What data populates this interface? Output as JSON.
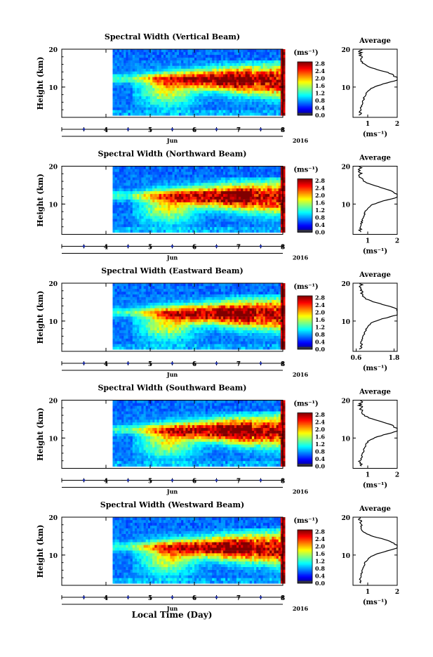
{
  "figure": {
    "xlabel": "Local Time (Day)",
    "month_label": "Jun",
    "year_label": "2016"
  },
  "chart_data": [
    {
      "type": "heatmap",
      "title": "Spectral Width (Vertical Beam)",
      "ylabel": "Height (km)",
      "xlim": [
        3.0,
        8.0
      ],
      "ylim": [
        2,
        20
      ],
      "xticks": [
        4,
        5,
        6,
        7,
        8
      ],
      "yticks": [
        10,
        20
      ],
      "colorbar": {
        "label": "(ms⁻¹)",
        "range": [
          0.0,
          2.8
        ],
        "ticks": [
          "2.8",
          "2.4",
          "2.0",
          "1.6",
          "1.2",
          "0.8",
          "0.4",
          "0.0"
        ]
      },
      "average": {
        "title": "Average",
        "xlabel": "(ms⁻¹)",
        "xlim": [
          0.5,
          2.0
        ],
        "xticks": [
          1,
          2
        ],
        "xtick_labels": [
          "1",
          "2"
        ],
        "yticks": [
          10,
          20
        ],
        "ylim": [
          2,
          20
        ]
      }
    },
    {
      "type": "heatmap",
      "title": "Spectral Width (Northward Beam)",
      "ylabel": "Height (km)",
      "xlim": [
        3.0,
        8.0
      ],
      "ylim": [
        2,
        20
      ],
      "xticks": [
        4,
        5,
        6,
        7,
        8
      ],
      "yticks": [
        10,
        20
      ],
      "colorbar": {
        "label": "(ms⁻¹)",
        "range": [
          0.0,
          2.8
        ],
        "ticks": [
          "2.8",
          "2.4",
          "2.0",
          "1.6",
          "1.2",
          "0.8",
          "0.4",
          "0.0"
        ]
      },
      "average": {
        "title": "Average",
        "xlabel": "(ms⁻¹)",
        "xlim": [
          0.5,
          2.0
        ],
        "xticks": [
          1,
          2
        ],
        "xtick_labels": [
          "1",
          "2"
        ],
        "yticks": [
          10,
          20
        ],
        "ylim": [
          2,
          20
        ]
      }
    },
    {
      "type": "heatmap",
      "title": "Spectral Width (Eastward Beam)",
      "ylabel": "Height (km)",
      "xlim": [
        3.0,
        8.0
      ],
      "ylim": [
        2,
        20
      ],
      "xticks": [
        4,
        5,
        6,
        7,
        8
      ],
      "yticks": [
        10,
        20
      ],
      "colorbar": {
        "label": "(ms⁻¹)",
        "range": [
          0.0,
          2.8
        ],
        "ticks": [
          "2.8",
          "2.4",
          "2.0",
          "1.6",
          "1.2",
          "0.8",
          "0.4",
          "0.0"
        ]
      },
      "average": {
        "title": "Average",
        "xlabel": "(ms⁻¹)",
        "xlim": [
          0.5,
          1.9
        ],
        "xticks": [
          0.6,
          1.8
        ],
        "xtick_labels": [
          "0.6",
          "1.8"
        ],
        "yticks": [
          10,
          20
        ],
        "ylim": [
          2,
          20
        ]
      }
    },
    {
      "type": "heatmap",
      "title": "Spectral Width (Southward Beam)",
      "ylabel": "Height (km)",
      "xlim": [
        3.0,
        8.0
      ],
      "ylim": [
        2,
        20
      ],
      "xticks": [
        4,
        5,
        6,
        7,
        8
      ],
      "yticks": [
        10,
        20
      ],
      "colorbar": {
        "label": "(ms⁻¹)",
        "range": [
          0.0,
          2.8
        ],
        "ticks": [
          "2.8",
          "2.4",
          "2.0",
          "1.6",
          "1.2",
          "0.8",
          "0.4",
          "0.0"
        ]
      },
      "average": {
        "title": "Average",
        "xlabel": "(ms⁻¹)",
        "xlim": [
          0.5,
          2.0
        ],
        "xticks": [
          1,
          2
        ],
        "xtick_labels": [
          "1",
          "2"
        ],
        "yticks": [
          10,
          20
        ],
        "ylim": [
          2,
          20
        ]
      }
    },
    {
      "type": "heatmap",
      "title": "Spectral Width (Westward Beam)",
      "ylabel": "Height (km)",
      "xlim": [
        3.0,
        8.0
      ],
      "ylim": [
        2,
        20
      ],
      "xticks": [
        4,
        5,
        6,
        7,
        8
      ],
      "yticks": [
        10,
        20
      ],
      "colorbar": {
        "label": "(ms⁻¹)",
        "range": [
          0.0,
          2.8
        ],
        "ticks": [
          "2.8",
          "2.4",
          "2.0",
          "1.6",
          "1.2",
          "0.8",
          "0.4",
          "0.0"
        ]
      },
      "average": {
        "title": "Average",
        "xlabel": "(ms⁻¹)",
        "xlim": [
          0.5,
          2.0
        ],
        "xticks": [
          1,
          2
        ],
        "xtick_labels": [
          "1",
          "2"
        ],
        "yticks": [
          10,
          20
        ],
        "ylim": [
          2,
          20
        ]
      }
    }
  ]
}
